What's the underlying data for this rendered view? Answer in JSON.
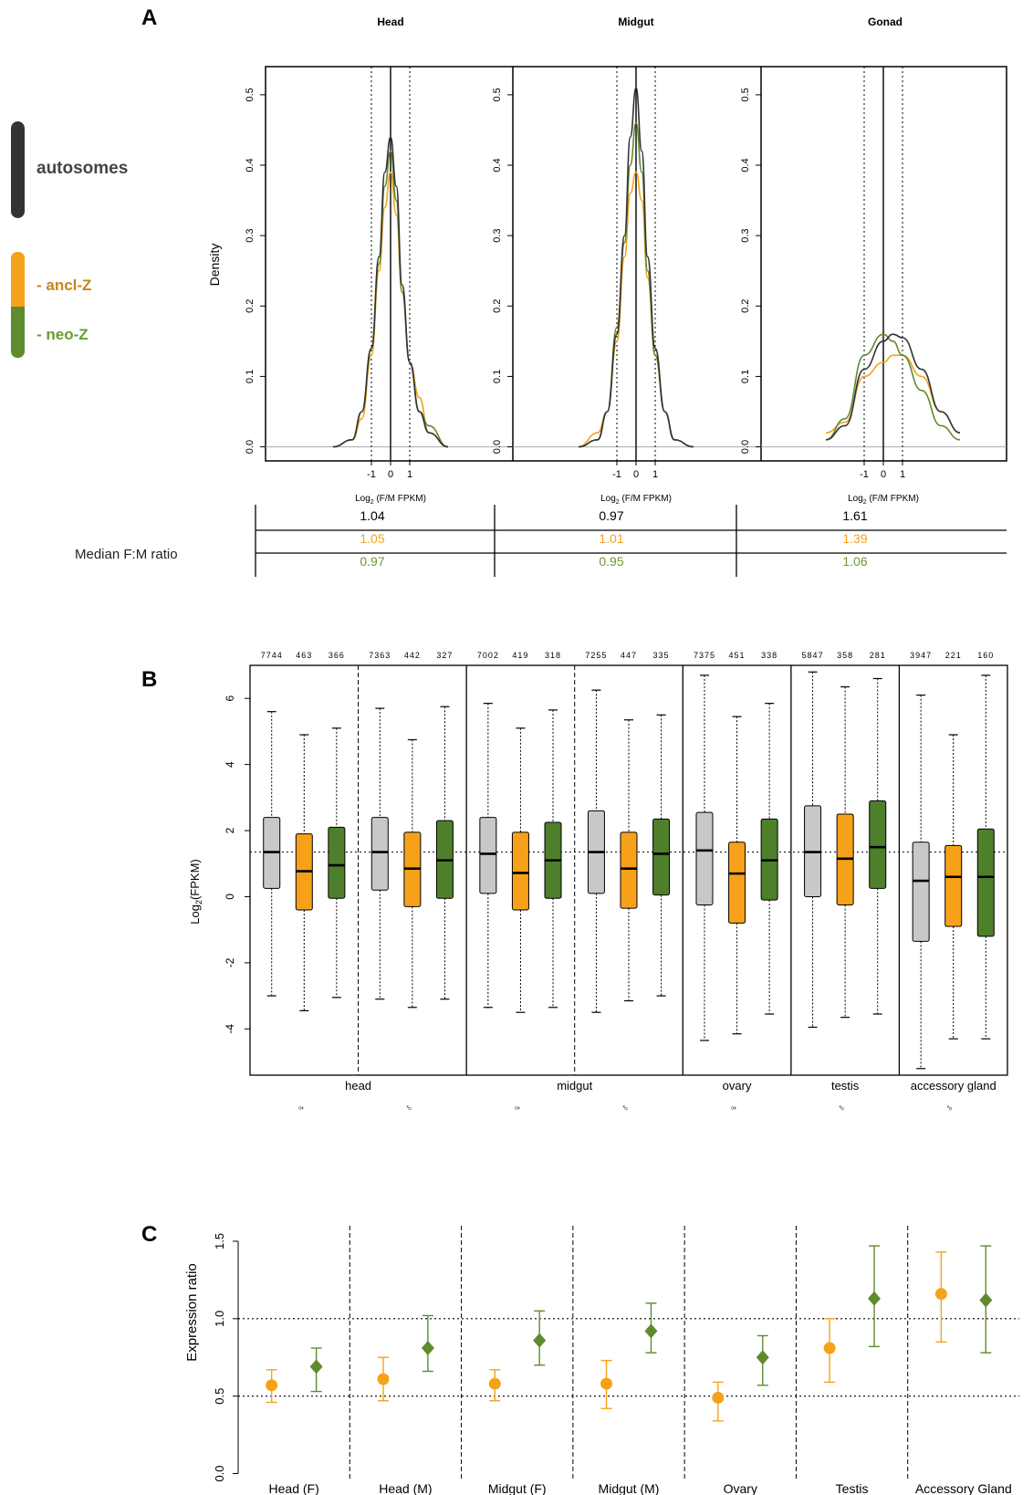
{
  "colors": {
    "autosomes": "#333333",
    "ancl_z": "#F5A21B",
    "neo_z": "#5E8B2E",
    "box_grey": "#C8C8C8",
    "box_orange": "#F7A11A",
    "box_green": "#4E7F2B",
    "label_green": "#6A9B2E"
  },
  "legend": {
    "autosomes": "autosomes",
    "ancl_z": "- ancl-Z",
    "neo_z": "- neo-Z"
  },
  "panel_a": {
    "letter": "A",
    "titles": [
      "Head",
      "Midgut",
      "Gonad"
    ],
    "ylabel": "Density",
    "xlabel": "Log",
    "xlabel_sub": "2",
    "xlabel_rest": " (F/M FPKM)",
    "yticks": [
      "0.0",
      "0.1",
      "0.2",
      "0.3",
      "0.4",
      "0.5"
    ],
    "xticks": [
      "-1",
      "0",
      "1"
    ],
    "median_label": "Median F:M ratio",
    "median_table": [
      [
        "1.04",
        "0.97",
        "1.61"
      ],
      [
        "1.05",
        "1.01",
        "1.39"
      ],
      [
        "0.97",
        "0.95",
        "1.06"
      ]
    ]
  },
  "panel_b": {
    "letter": "B",
    "ylabel": "Log",
    "ylabel_sub": "2",
    "ylabel_rest": "(FPKM)",
    "yticks": [
      "-4",
      "-2",
      "0",
      "2",
      "4",
      "6"
    ],
    "tissue_labels": [
      "head",
      "midgut",
      "ovary",
      "testis",
      "accessory gland"
    ],
    "sex_labels": [
      "♀",
      "♂",
      "♀",
      "♂",
      "♀",
      "♂",
      "♂"
    ],
    "counts": [
      "7744",
      "463",
      "366",
      "7363",
      "442",
      "327",
      "7002",
      "419",
      "318",
      "7255",
      "447",
      "335",
      "7375",
      "451",
      "338",
      "5847",
      "358",
      "281",
      "3947",
      "221",
      "160"
    ]
  },
  "panel_c": {
    "letter": "C",
    "ylabel": "Expression ratio",
    "yticks": [
      "0.0",
      "0.5",
      "1.0",
      "1.5"
    ],
    "categories": [
      "Head (F)",
      "Head (M)",
      "Midgut (F)",
      "Midgut (M)",
      "Ovary",
      "Testis",
      "Accessory Gland"
    ]
  },
  "chart_data": [
    {
      "type": "line",
      "panel": "A",
      "title": "Head",
      "xlabel": "Log2 (F/M FPKM)",
      "ylabel": "Density",
      "ylim": [
        0,
        0.5
      ],
      "series": [
        {
          "name": "autosomes",
          "x": [
            -3,
            -2,
            -1.5,
            -1,
            -0.6,
            -0.3,
            0,
            0.3,
            0.6,
            1,
            1.5,
            2,
            3
          ],
          "values": [
            0,
            0.01,
            0.05,
            0.14,
            0.27,
            0.39,
            0.44,
            0.37,
            0.23,
            0.12,
            0.05,
            0.02,
            0
          ]
        },
        {
          "name": "ancl-Z",
          "x": [
            -3,
            -2,
            -1.5,
            -1,
            -0.6,
            -0.3,
            0,
            0.3,
            0.6,
            1,
            1.5,
            2,
            3
          ],
          "values": [
            0,
            0.01,
            0.04,
            0.13,
            0.25,
            0.34,
            0.39,
            0.33,
            0.22,
            0.12,
            0.07,
            0.02,
            0
          ]
        },
        {
          "name": "neo-Z",
          "x": [
            -3,
            -2,
            -1.5,
            -1,
            -0.6,
            -0.3,
            0,
            0.3,
            0.6,
            1,
            1.5,
            2,
            3
          ],
          "values": [
            0,
            0.01,
            0.05,
            0.14,
            0.26,
            0.37,
            0.42,
            0.35,
            0.22,
            0.12,
            0.05,
            0.03,
            0
          ]
        }
      ]
    },
    {
      "type": "line",
      "panel": "A",
      "title": "Midgut",
      "xlabel": "Log2 (F/M FPKM)",
      "ylabel": "Density",
      "ylim": [
        0,
        0.5
      ],
      "series": [
        {
          "name": "autosomes",
          "x": [
            -3,
            -2,
            -1.5,
            -1,
            -0.6,
            -0.3,
            0,
            0.3,
            0.6,
            1,
            1.5,
            2,
            3
          ],
          "values": [
            0,
            0.01,
            0.05,
            0.16,
            0.3,
            0.44,
            0.51,
            0.42,
            0.27,
            0.14,
            0.05,
            0.01,
            0
          ]
        },
        {
          "name": "ancl-Z",
          "x": [
            -3,
            -2,
            -1.5,
            -1,
            -0.6,
            -0.3,
            0,
            0.3,
            0.6,
            1,
            1.5,
            2,
            3
          ],
          "values": [
            0,
            0.02,
            0.05,
            0.15,
            0.27,
            0.36,
            0.39,
            0.35,
            0.24,
            0.13,
            0.05,
            0.01,
            0
          ]
        },
        {
          "name": "neo-Z",
          "x": [
            -3,
            -2,
            -1.5,
            -1,
            -0.6,
            -0.3,
            0,
            0.3,
            0.6,
            1,
            1.5,
            2,
            3
          ],
          "values": [
            0,
            0.01,
            0.05,
            0.17,
            0.29,
            0.4,
            0.46,
            0.39,
            0.25,
            0.13,
            0.05,
            0.01,
            0
          ]
        }
      ]
    },
    {
      "type": "line",
      "panel": "A",
      "title": "Gonad",
      "xlabel": "Log2 (F/M FPKM)",
      "ylabel": "Density",
      "ylim": [
        0,
        0.5
      ],
      "series": [
        {
          "name": "autosomes",
          "x": [
            -3,
            -2,
            -1,
            0,
            0.5,
            1,
            2,
            3,
            4
          ],
          "values": [
            0.01,
            0.03,
            0.11,
            0.15,
            0.16,
            0.155,
            0.11,
            0.05,
            0.02
          ]
        },
        {
          "name": "ancl-Z",
          "x": [
            -3,
            -2,
            -1,
            0,
            0.5,
            1,
            2,
            3,
            4
          ],
          "values": [
            0.02,
            0.035,
            0.1,
            0.12,
            0.13,
            0.13,
            0.1,
            0.05,
            0.02
          ]
        },
        {
          "name": "neo-Z",
          "x": [
            -3,
            -2,
            -1,
            0,
            0.5,
            1,
            2,
            3,
            4
          ],
          "values": [
            0.01,
            0.04,
            0.13,
            0.16,
            0.15,
            0.13,
            0.08,
            0.03,
            0.01
          ]
        }
      ]
    },
    {
      "type": "box",
      "panel": "B",
      "ylabel": "Log2(FPKM)",
      "ylim": [
        -5.4,
        7
      ],
      "groups": [
        {
          "tissue": "head",
          "sex": "♀",
          "boxes": [
            {
              "series": "autosomes",
              "n": 7744,
              "min": -3.0,
              "q1": 0.25,
              "median": 1.35,
              "q3": 2.4,
              "max": 5.6
            },
            {
              "series": "ancl-Z",
              "n": 463,
              "min": -3.45,
              "q1": -0.4,
              "median": 0.77,
              "q3": 1.9,
              "max": 4.9
            },
            {
              "series": "neo-Z",
              "n": 366,
              "min": -3.05,
              "q1": -0.05,
              "median": 0.95,
              "q3": 2.1,
              "max": 5.1
            }
          ]
        },
        {
          "tissue": "head",
          "sex": "♂",
          "boxes": [
            {
              "series": "autosomes",
              "n": 7363,
              "min": -3.1,
              "q1": 0.2,
              "median": 1.35,
              "q3": 2.4,
              "max": 5.7
            },
            {
              "series": "ancl-Z",
              "n": 442,
              "min": -3.35,
              "q1": -0.3,
              "median": 0.85,
              "q3": 1.95,
              "max": 4.75
            },
            {
              "series": "neo-Z",
              "n": 327,
              "min": -3.1,
              "q1": -0.05,
              "median": 1.1,
              "q3": 2.3,
              "max": 5.75
            }
          ]
        },
        {
          "tissue": "midgut",
          "sex": "♀",
          "boxes": [
            {
              "series": "autosomes",
              "n": 7002,
              "min": -3.35,
              "q1": 0.1,
              "median": 1.3,
              "q3": 2.4,
              "max": 5.85
            },
            {
              "series": "ancl-Z",
              "n": 419,
              "min": -3.5,
              "q1": -0.4,
              "median": 0.72,
              "q3": 1.95,
              "max": 5.1
            },
            {
              "series": "neo-Z",
              "n": 318,
              "min": -3.35,
              "q1": -0.05,
              "median": 1.1,
              "q3": 2.25,
              "max": 5.65
            }
          ]
        },
        {
          "tissue": "midgut",
          "sex": "♂",
          "boxes": [
            {
              "series": "autosomes",
              "n": 7255,
              "min": -3.5,
              "q1": 0.1,
              "median": 1.35,
              "q3": 2.6,
              "max": 6.25
            },
            {
              "series": "ancl-Z",
              "n": 447,
              "min": -3.15,
              "q1": -0.35,
              "median": 0.85,
              "q3": 1.95,
              "max": 5.35
            },
            {
              "series": "neo-Z",
              "n": 335,
              "min": -3.0,
              "q1": 0.05,
              "median": 1.3,
              "q3": 2.35,
              "max": 5.5
            }
          ]
        },
        {
          "tissue": "ovary",
          "sex": "♀",
          "boxes": [
            {
              "series": "autosomes",
              "n": 7375,
              "min": -4.35,
              "q1": -0.25,
              "median": 1.4,
              "q3": 2.55,
              "max": 6.7
            },
            {
              "series": "ancl-Z",
              "n": 451,
              "min": -4.15,
              "q1": -0.8,
              "median": 0.7,
              "q3": 1.65,
              "max": 5.45
            },
            {
              "series": "neo-Z",
              "n": 338,
              "min": -3.55,
              "q1": -0.1,
              "median": 1.1,
              "q3": 2.35,
              "max": 5.85
            }
          ]
        },
        {
          "tissue": "testis",
          "sex": "♂",
          "boxes": [
            {
              "series": "autosomes",
              "n": 5847,
              "min": -3.95,
              "q1": 0.0,
              "median": 1.35,
              "q3": 2.75,
              "max": 6.8
            },
            {
              "series": "ancl-Z",
              "n": 358,
              "min": -3.65,
              "q1": -0.25,
              "median": 1.15,
              "q3": 2.5,
              "max": 6.35
            },
            {
              "series": "neo-Z",
              "n": 281,
              "min": -3.55,
              "q1": 0.25,
              "median": 1.5,
              "q3": 2.9,
              "max": 6.6
            }
          ]
        },
        {
          "tissue": "accessory gland",
          "sex": "♂",
          "boxes": [
            {
              "series": "autosomes",
              "n": 3947,
              "min": -5.2,
              "q1": -1.35,
              "median": 0.48,
              "q3": 1.65,
              "max": 6.1
            },
            {
              "series": "ancl-Z",
              "n": 221,
              "min": -4.3,
              "q1": -0.9,
              "median": 0.6,
              "q3": 1.55,
              "max": 4.9
            },
            {
              "series": "neo-Z",
              "n": 160,
              "min": -4.3,
              "q1": -1.2,
              "median": 0.6,
              "q3": 2.05,
              "max": 6.7
            }
          ]
        }
      ],
      "reference_line": 1.35
    },
    {
      "type": "scatter",
      "panel": "C",
      "ylabel": "Expression ratio",
      "ylim": [
        0,
        1.5
      ],
      "categories": [
        "Head (F)",
        "Head (M)",
        "Midgut (F)",
        "Midgut (M)",
        "Ovary",
        "Testis",
        "Accessory Gland"
      ],
      "reference_lines": [
        0.5,
        1.0
      ],
      "series": [
        {
          "name": "ancl-Z",
          "values": [
            0.57,
            0.61,
            0.58,
            0.58,
            0.49,
            0.81,
            1.16
          ],
          "lower": [
            0.46,
            0.47,
            0.47,
            0.42,
            0.34,
            0.59,
            0.85
          ],
          "upper": [
            0.67,
            0.75,
            0.67,
            0.73,
            0.59,
            1.0,
            1.43
          ]
        },
        {
          "name": "neo-Z",
          "values": [
            0.69,
            0.81,
            0.86,
            0.92,
            0.75,
            1.13,
            1.12
          ],
          "lower": [
            0.53,
            0.66,
            0.7,
            0.78,
            0.57,
            0.82,
            0.78
          ],
          "upper": [
            0.81,
            1.02,
            1.05,
            1.1,
            0.89,
            1.47,
            1.47
          ]
        }
      ]
    }
  ]
}
